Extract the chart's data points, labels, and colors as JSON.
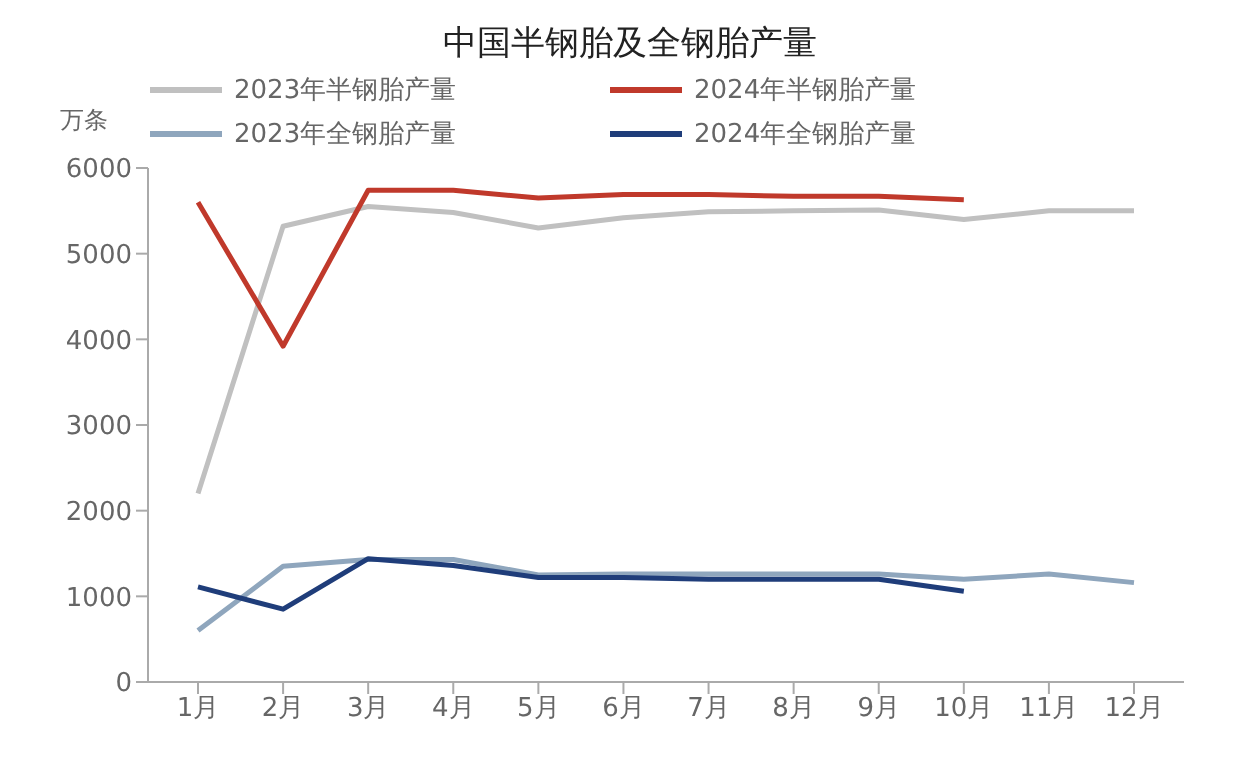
{
  "chart_data": {
    "type": "line",
    "title": "中国半钢胎及全钢胎产量",
    "ylabel": "万条",
    "categories": [
      "1月",
      "2月",
      "3月",
      "4月",
      "5月",
      "6月",
      "7月",
      "8月",
      "9月",
      "10月",
      "11月",
      "12月"
    ],
    "series": [
      {
        "name": "2023年半钢胎产量",
        "color": "#c0c0c0",
        "values": [
          2200,
          5320,
          5550,
          5480,
          5300,
          5420,
          5490,
          5500,
          5510,
          5400,
          5500,
          5500
        ]
      },
      {
        "name": "2024年半钢胎产量",
        "color": "#c0392b",
        "values": [
          5600,
          3920,
          5740,
          5740,
          5650,
          5690,
          5690,
          5670,
          5670,
          5630,
          null,
          null
        ]
      },
      {
        "name": "2023年全钢胎产量",
        "color": "#8fa6bd",
        "values": [
          600,
          1350,
          1430,
          1430,
          1250,
          1260,
          1260,
          1260,
          1260,
          1200,
          1260,
          1160
        ]
      },
      {
        "name": "2024年全钢胎产量",
        "color": "#1f3d7a",
        "values": [
          1110,
          850,
          1440,
          1360,
          1220,
          1220,
          1200,
          1200,
          1200,
          1060,
          null,
          null
        ]
      }
    ],
    "ylim": [
      0,
      6000
    ],
    "yticks": [
      0,
      1000,
      2000,
      3000,
      4000,
      5000,
      6000
    ],
    "grid": false,
    "legend": "top",
    "marker": "none",
    "line_style": "solid"
  }
}
